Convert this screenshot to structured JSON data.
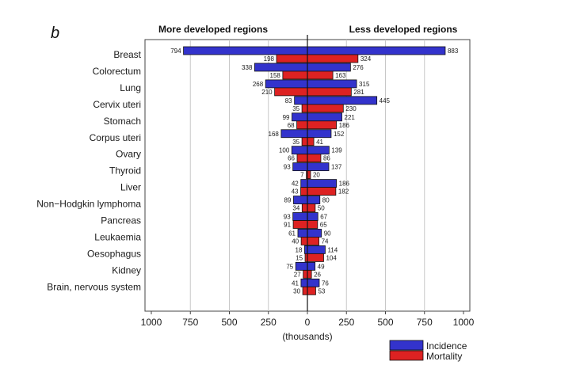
{
  "chart_data": {
    "type": "bar",
    "panel_label": "b",
    "left_heading": "More developed regions",
    "right_heading": "Less developed regions",
    "xlabel": "(thousands)",
    "xlim": [
      -1000,
      1000
    ],
    "xticks": [
      -1000,
      -750,
      -500,
      -250,
      0,
      250,
      500,
      750,
      1000
    ],
    "xtick_labels": [
      "1000",
      "750",
      "500",
      "250",
      "0",
      "250",
      "500",
      "750",
      "1000"
    ],
    "grid": true,
    "legend_position": "bottom-right",
    "categories": [
      "Breast",
      "Colorectum",
      "Lung",
      "Cervix uteri",
      "Stomach",
      "Corpus uteri",
      "Ovary",
      "Thyroid",
      "Liver",
      "Non−Hodgkin lymphoma",
      "Pancreas",
      "Leukaemia",
      "Oesophagus",
      "Kidney",
      "Brain, nervous system"
    ],
    "series": [
      {
        "name": "Incidence",
        "color": "#3333cc",
        "region": "More developed regions",
        "values": [
          794,
          338,
          268,
          83,
          99,
          168,
          100,
          93,
          42,
          89,
          93,
          61,
          18,
          75,
          41
        ]
      },
      {
        "name": "Mortality",
        "color": "#dd2222",
        "region": "More developed regions",
        "values": [
          198,
          158,
          210,
          35,
          68,
          35,
          66,
          7,
          43,
          34,
          91,
          40,
          15,
          27,
          30
        ]
      },
      {
        "name": "Incidence",
        "color": "#3333cc",
        "region": "Less developed regions",
        "values": [
          883,
          276,
          315,
          445,
          221,
          152,
          139,
          137,
          186,
          80,
          67,
          90,
          114,
          49,
          76
        ]
      },
      {
        "name": "Mortality",
        "color": "#dd2222",
        "region": "Less developed regions",
        "values": [
          324,
          163,
          281,
          230,
          186,
          41,
          86,
          20,
          182,
          50,
          65,
          74,
          104,
          26,
          53
        ]
      }
    ]
  }
}
